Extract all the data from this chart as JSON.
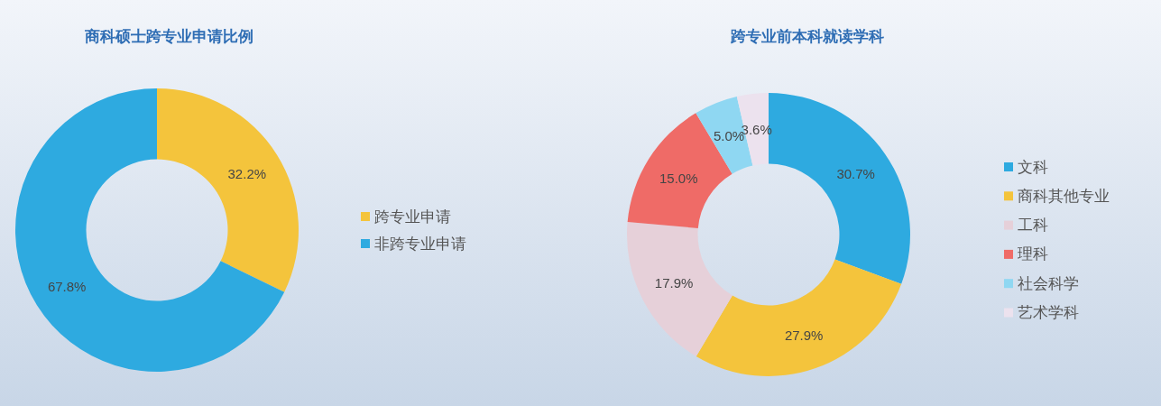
{
  "chart_data": [
    {
      "type": "donut",
      "title": "商科硕士跨专业申请比例",
      "categories": [
        "跨专业申请",
        "非跨专业申请"
      ],
      "values": [
        32.2,
        67.8
      ],
      "colors": [
        "#f4c43c",
        "#2eaae0"
      ],
      "value_labels": [
        "32.2%",
        "67.8%"
      ],
      "legend": "right"
    },
    {
      "type": "donut",
      "title": "跨专业前本科就读学科",
      "categories": [
        "文科",
        "商科其他专业",
        "工科",
        "理科",
        "社会科学",
        "艺术学科"
      ],
      "values": [
        30.7,
        27.9,
        17.9,
        15.0,
        5.0,
        3.6
      ],
      "colors": [
        "#2eaae0",
        "#f4c43c",
        "#e6d0d9",
        "#ef6b67",
        "#8fd7f2",
        "#ece2ee"
      ],
      "value_labels": [
        "30.7%",
        "27.9%",
        "17.9%",
        "15.0%",
        "5.0%",
        "3.6%"
      ],
      "legend": "right"
    }
  ]
}
